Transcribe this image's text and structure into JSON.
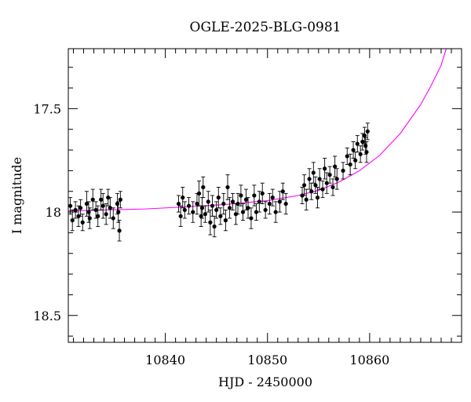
{
  "chart_data": {
    "type": "scatter",
    "title": "OGLE-2025-BLG-0981",
    "xlabel": "HJD - 2450000",
    "ylabel": "I magnitude",
    "xlim": [
      10830.5,
      10869.0
    ],
    "ylim": [
      18.63,
      17.21
    ],
    "y_inverted": true,
    "x_ticks": [
      10840,
      10850,
      10860
    ],
    "x_tick_labels": [
      "10840",
      "10850",
      "10860"
    ],
    "x_minor_step": 1,
    "y_ticks": [
      17.5,
      18.0,
      18.5
    ],
    "y_tick_labels": [
      "17.5",
      "18",
      "18.5"
    ],
    "y_minor_step": 0.1,
    "grid": false,
    "colors": {
      "model": "#ff00ff",
      "points": "#000000"
    },
    "series": [
      {
        "type": "scatter_errorbars",
        "points": [
          [
            10830.7,
            17.97,
            0.04
          ],
          [
            10830.9,
            18.04,
            0.05
          ],
          [
            10831.2,
            17.99,
            0.04
          ],
          [
            10831.5,
            18.02,
            0.05
          ],
          [
            10831.7,
            17.98,
            0.04
          ],
          [
            10831.9,
            18.05,
            0.04
          ],
          [
            10832.3,
            17.96,
            0.06
          ],
          [
            10832.5,
            18.0,
            0.05
          ],
          [
            10832.6,
            18.03,
            0.05
          ],
          [
            10832.9,
            17.94,
            0.05
          ],
          [
            10833.2,
            17.99,
            0.04
          ],
          [
            10833.4,
            18.02,
            0.05
          ],
          [
            10833.7,
            17.94,
            0.05
          ],
          [
            10833.9,
            17.97,
            0.06
          ],
          [
            10834.2,
            18.01,
            0.05
          ],
          [
            10834.4,
            17.93,
            0.04
          ],
          [
            10834.6,
            17.98,
            0.05
          ],
          [
            10834.9,
            18.03,
            0.05
          ],
          [
            10835.3,
            17.96,
            0.05
          ],
          [
            10835.4,
            18.0,
            0.05
          ],
          [
            10835.5,
            18.09,
            0.05
          ],
          [
            10835.6,
            17.94,
            0.04
          ],
          [
            10841.3,
            17.96,
            0.04
          ],
          [
            10841.5,
            18.02,
            0.05
          ],
          [
            10841.7,
            17.93,
            0.05
          ],
          [
            10841.9,
            17.99,
            0.04
          ],
          [
            10842.3,
            17.97,
            0.04
          ],
          [
            10842.7,
            18.0,
            0.05
          ],
          [
            10843.1,
            17.96,
            0.05
          ],
          [
            10843.3,
            17.91,
            0.06
          ],
          [
            10843.5,
            18.02,
            0.05
          ],
          [
            10843.6,
            17.98,
            0.05
          ],
          [
            10843.7,
            17.88,
            0.05
          ],
          [
            10843.9,
            18.01,
            0.04
          ],
          [
            10844.2,
            17.95,
            0.05
          ],
          [
            10844.4,
            18.05,
            0.06
          ],
          [
            10844.6,
            17.97,
            0.05
          ],
          [
            10844.8,
            18.07,
            0.05
          ],
          [
            10845.0,
            17.99,
            0.04
          ],
          [
            10845.2,
            17.93,
            0.05
          ],
          [
            10845.4,
            18.02,
            0.04
          ],
          [
            10845.7,
            17.96,
            0.05
          ],
          [
            10845.9,
            18.04,
            0.05
          ],
          [
            10846.1,
            17.88,
            0.06
          ],
          [
            10846.3,
            17.98,
            0.05
          ],
          [
            10846.6,
            17.95,
            0.04
          ],
          [
            10846.9,
            18.01,
            0.05
          ],
          [
            10847.1,
            17.96,
            0.05
          ],
          [
            10847.4,
            17.92,
            0.05
          ],
          [
            10847.6,
            18.0,
            0.04
          ],
          [
            10847.9,
            17.94,
            0.05
          ],
          [
            10848.1,
            17.98,
            0.05
          ],
          [
            10848.4,
            18.03,
            0.05
          ],
          [
            10848.7,
            17.92,
            0.05
          ],
          [
            10848.9,
            18.0,
            0.04
          ],
          [
            10849.2,
            17.95,
            0.05
          ],
          [
            10849.5,
            17.91,
            0.05
          ],
          [
            10849.8,
            17.99,
            0.04
          ],
          [
            10850.2,
            17.96,
            0.05
          ],
          [
            10850.5,
            17.93,
            0.04
          ],
          [
            10850.8,
            18.0,
            0.05
          ],
          [
            10851.2,
            17.95,
            0.05
          ],
          [
            10851.5,
            17.9,
            0.04
          ],
          [
            10851.8,
            17.96,
            0.05
          ],
          [
            10853.4,
            17.92,
            0.04
          ],
          [
            10853.6,
            17.87,
            0.05
          ],
          [
            10853.8,
            17.94,
            0.05
          ],
          [
            10854.1,
            17.84,
            0.05
          ],
          [
            10854.3,
            17.9,
            0.04
          ],
          [
            10854.5,
            17.81,
            0.05
          ],
          [
            10854.7,
            17.87,
            0.04
          ],
          [
            10854.9,
            17.93,
            0.05
          ],
          [
            10855.1,
            17.84,
            0.05
          ],
          [
            10855.4,
            17.89,
            0.04
          ],
          [
            10855.6,
            17.79,
            0.05
          ],
          [
            10855.8,
            17.86,
            0.05
          ],
          [
            10856.1,
            17.82,
            0.04
          ],
          [
            10856.4,
            17.88,
            0.04
          ],
          [
            10856.6,
            17.78,
            0.05
          ],
          [
            10856.8,
            17.84,
            0.05
          ],
          [
            10857.4,
            17.8,
            0.04
          ],
          [
            10857.8,
            17.73,
            0.04
          ],
          [
            10858.1,
            17.77,
            0.05
          ],
          [
            10858.4,
            17.7,
            0.04
          ],
          [
            10858.6,
            17.75,
            0.04
          ],
          [
            10858.8,
            17.67,
            0.04
          ],
          [
            10859.1,
            17.72,
            0.04
          ],
          [
            10859.3,
            17.66,
            0.04
          ],
          [
            10859.5,
            17.63,
            0.04
          ],
          [
            10859.6,
            17.68,
            0.04
          ],
          [
            10859.7,
            17.71,
            0.05
          ],
          [
            10859.8,
            17.61,
            0.04
          ]
        ]
      },
      {
        "type": "model_curve",
        "x": [
          10830.5,
          10834,
          10838,
          10842,
          10846,
          10850,
          10853,
          10855,
          10857,
          10859,
          10861,
          10863,
          10865,
          10866,
          10867,
          10867.5
        ],
        "y": [
          17.995,
          17.99,
          17.985,
          17.975,
          17.963,
          17.945,
          17.92,
          17.895,
          17.855,
          17.8,
          17.725,
          17.62,
          17.48,
          17.39,
          17.29,
          17.21
        ]
      }
    ]
  }
}
